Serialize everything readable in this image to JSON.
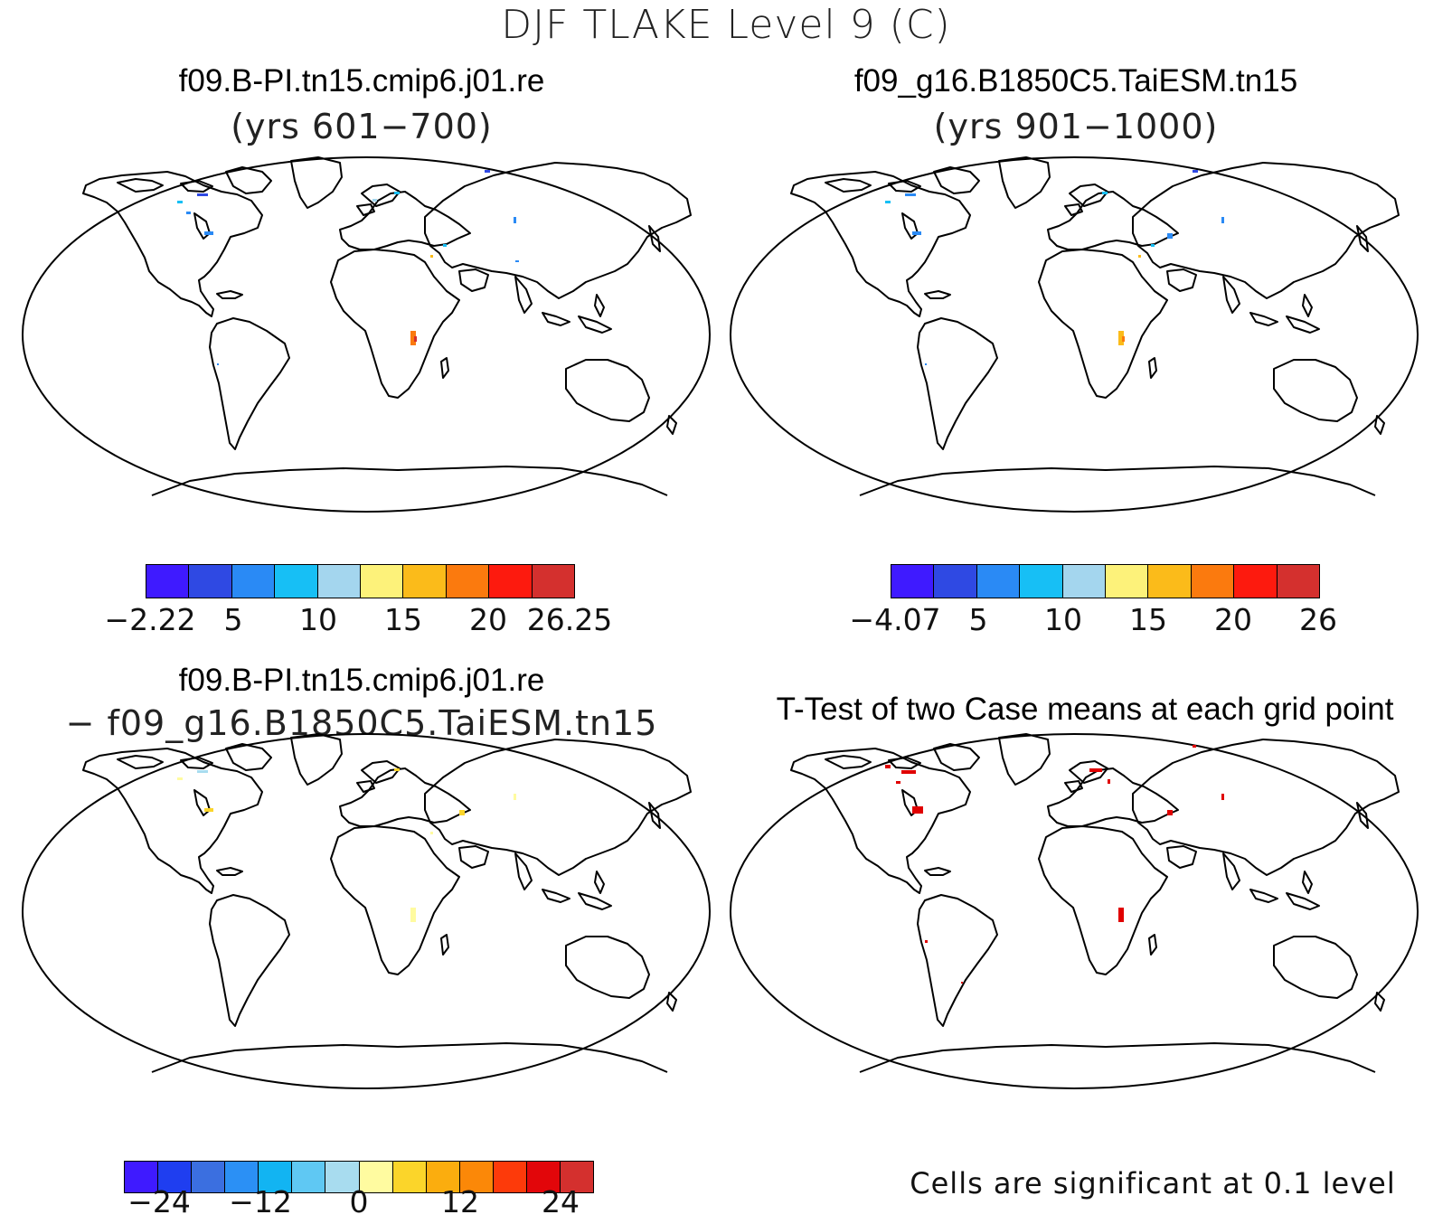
{
  "figure": {
    "title": "DJF TLAKE Level 9 (C)"
  },
  "panels": {
    "top_left": {
      "title": "f09.B-PI.tn15.cmip6.j01.re",
      "subtitle": "(yrs 601−700)",
      "colorbar": {
        "colors": [
          "#3f1aff",
          "#2f49e3",
          "#2a8af5",
          "#17bff5",
          "#a4d6ee",
          "#fdf27a",
          "#fbbb1a",
          "#fb7a0e",
          "#fd1a0e",
          "#d4302e"
        ],
        "tick_labels": [
          "−2.22",
          "5",
          "10",
          "15",
          "20",
          "26.25"
        ]
      }
    },
    "top_right": {
      "title": "f09_g16.B1850C5.TaiESM.tn15",
      "subtitle": "(yrs 901−1000)",
      "colorbar": {
        "colors": [
          "#3f1aff",
          "#2f49e3",
          "#2a8af5",
          "#17bff5",
          "#a4d6ee",
          "#fdf27a",
          "#fbbb1a",
          "#fb7a0e",
          "#fd1a0e",
          "#d4302e"
        ],
        "tick_labels": [
          "−4.07",
          "5",
          "10",
          "15",
          "20",
          "26"
        ]
      }
    },
    "bottom_left": {
      "title": "f09.B-PI.tn15.cmip6.j01.re",
      "subtitle": "− f09_g16.B1850C5.TaiESM.tn15",
      "colorbar": {
        "colors": [
          "#3f1aff",
          "#1f3ef0",
          "#3b6fe0",
          "#2b90f5",
          "#12b4f2",
          "#5fc8f3",
          "#a8dcef",
          "#fffba0",
          "#fbd52a",
          "#fbad0e",
          "#fb8808",
          "#fd3a0a",
          "#e2060a",
          "#d4302e"
        ],
        "tick_labels": [
          "−24",
          "−12",
          "0",
          "12",
          "24"
        ]
      }
    },
    "bottom_right": {
      "title": "T-Test of two Case means at each grid point",
      "note": "Cells are significant at 0.1 level"
    }
  },
  "colors": {
    "coast": "#000000",
    "significant": "#e00000"
  }
}
